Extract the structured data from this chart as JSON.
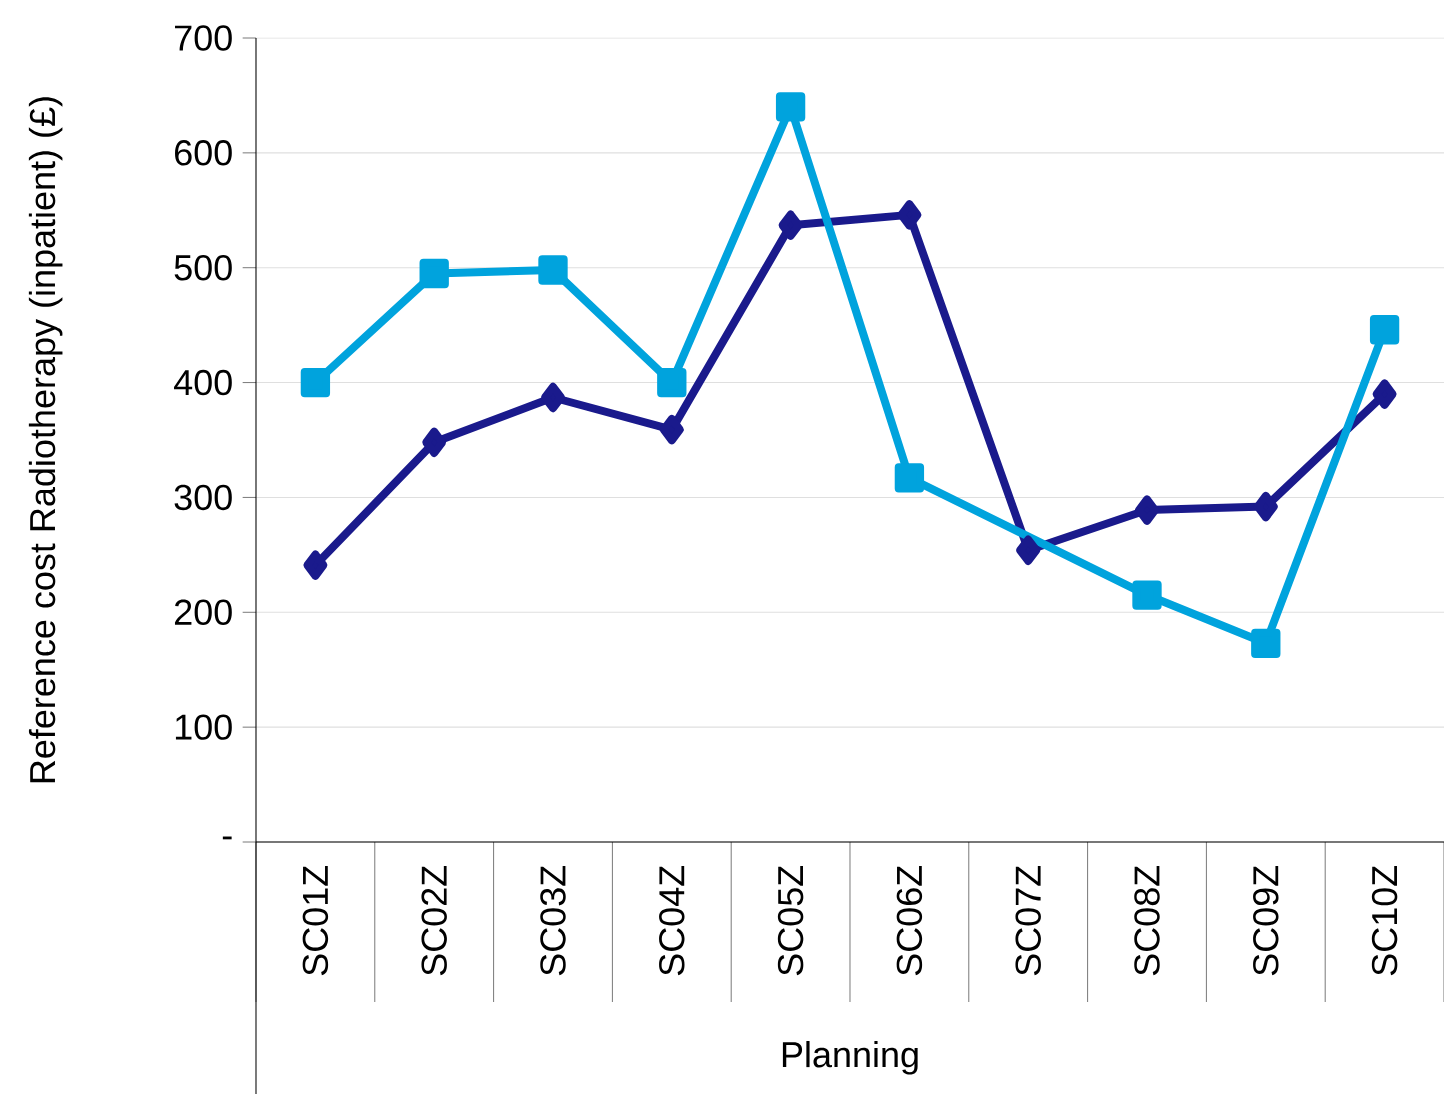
{
  "chart_data": {
    "type": "line",
    "xlabel": "Planning",
    "ylabel": "Reference cost Radiotherapy (inpatient) (£)",
    "categories": [
      "SC01Z",
      "SC02Z",
      "SC03Z",
      "SC04Z",
      "SC05Z",
      "SC06Z",
      "SC07Z",
      "SC08Z",
      "SC09Z",
      "SC10Z"
    ],
    "series": [
      {
        "color": "#1a1a8c",
        "marker": "diamond",
        "values": [
          241,
          348,
          387,
          359,
          537,
          546,
          254,
          289,
          292,
          390
        ]
      },
      {
        "color": "#00a3dd",
        "marker": "square",
        "values": [
          400,
          495,
          498,
          400,
          640,
          317,
          null,
          215,
          173,
          446
        ]
      }
    ],
    "ylim": [
      0,
      700
    ],
    "yticks": [
      {
        "value": 0,
        "label": "-"
      },
      100,
      200,
      300,
      400,
      500,
      600,
      700
    ],
    "grid": "y",
    "line_style": "solid"
  }
}
